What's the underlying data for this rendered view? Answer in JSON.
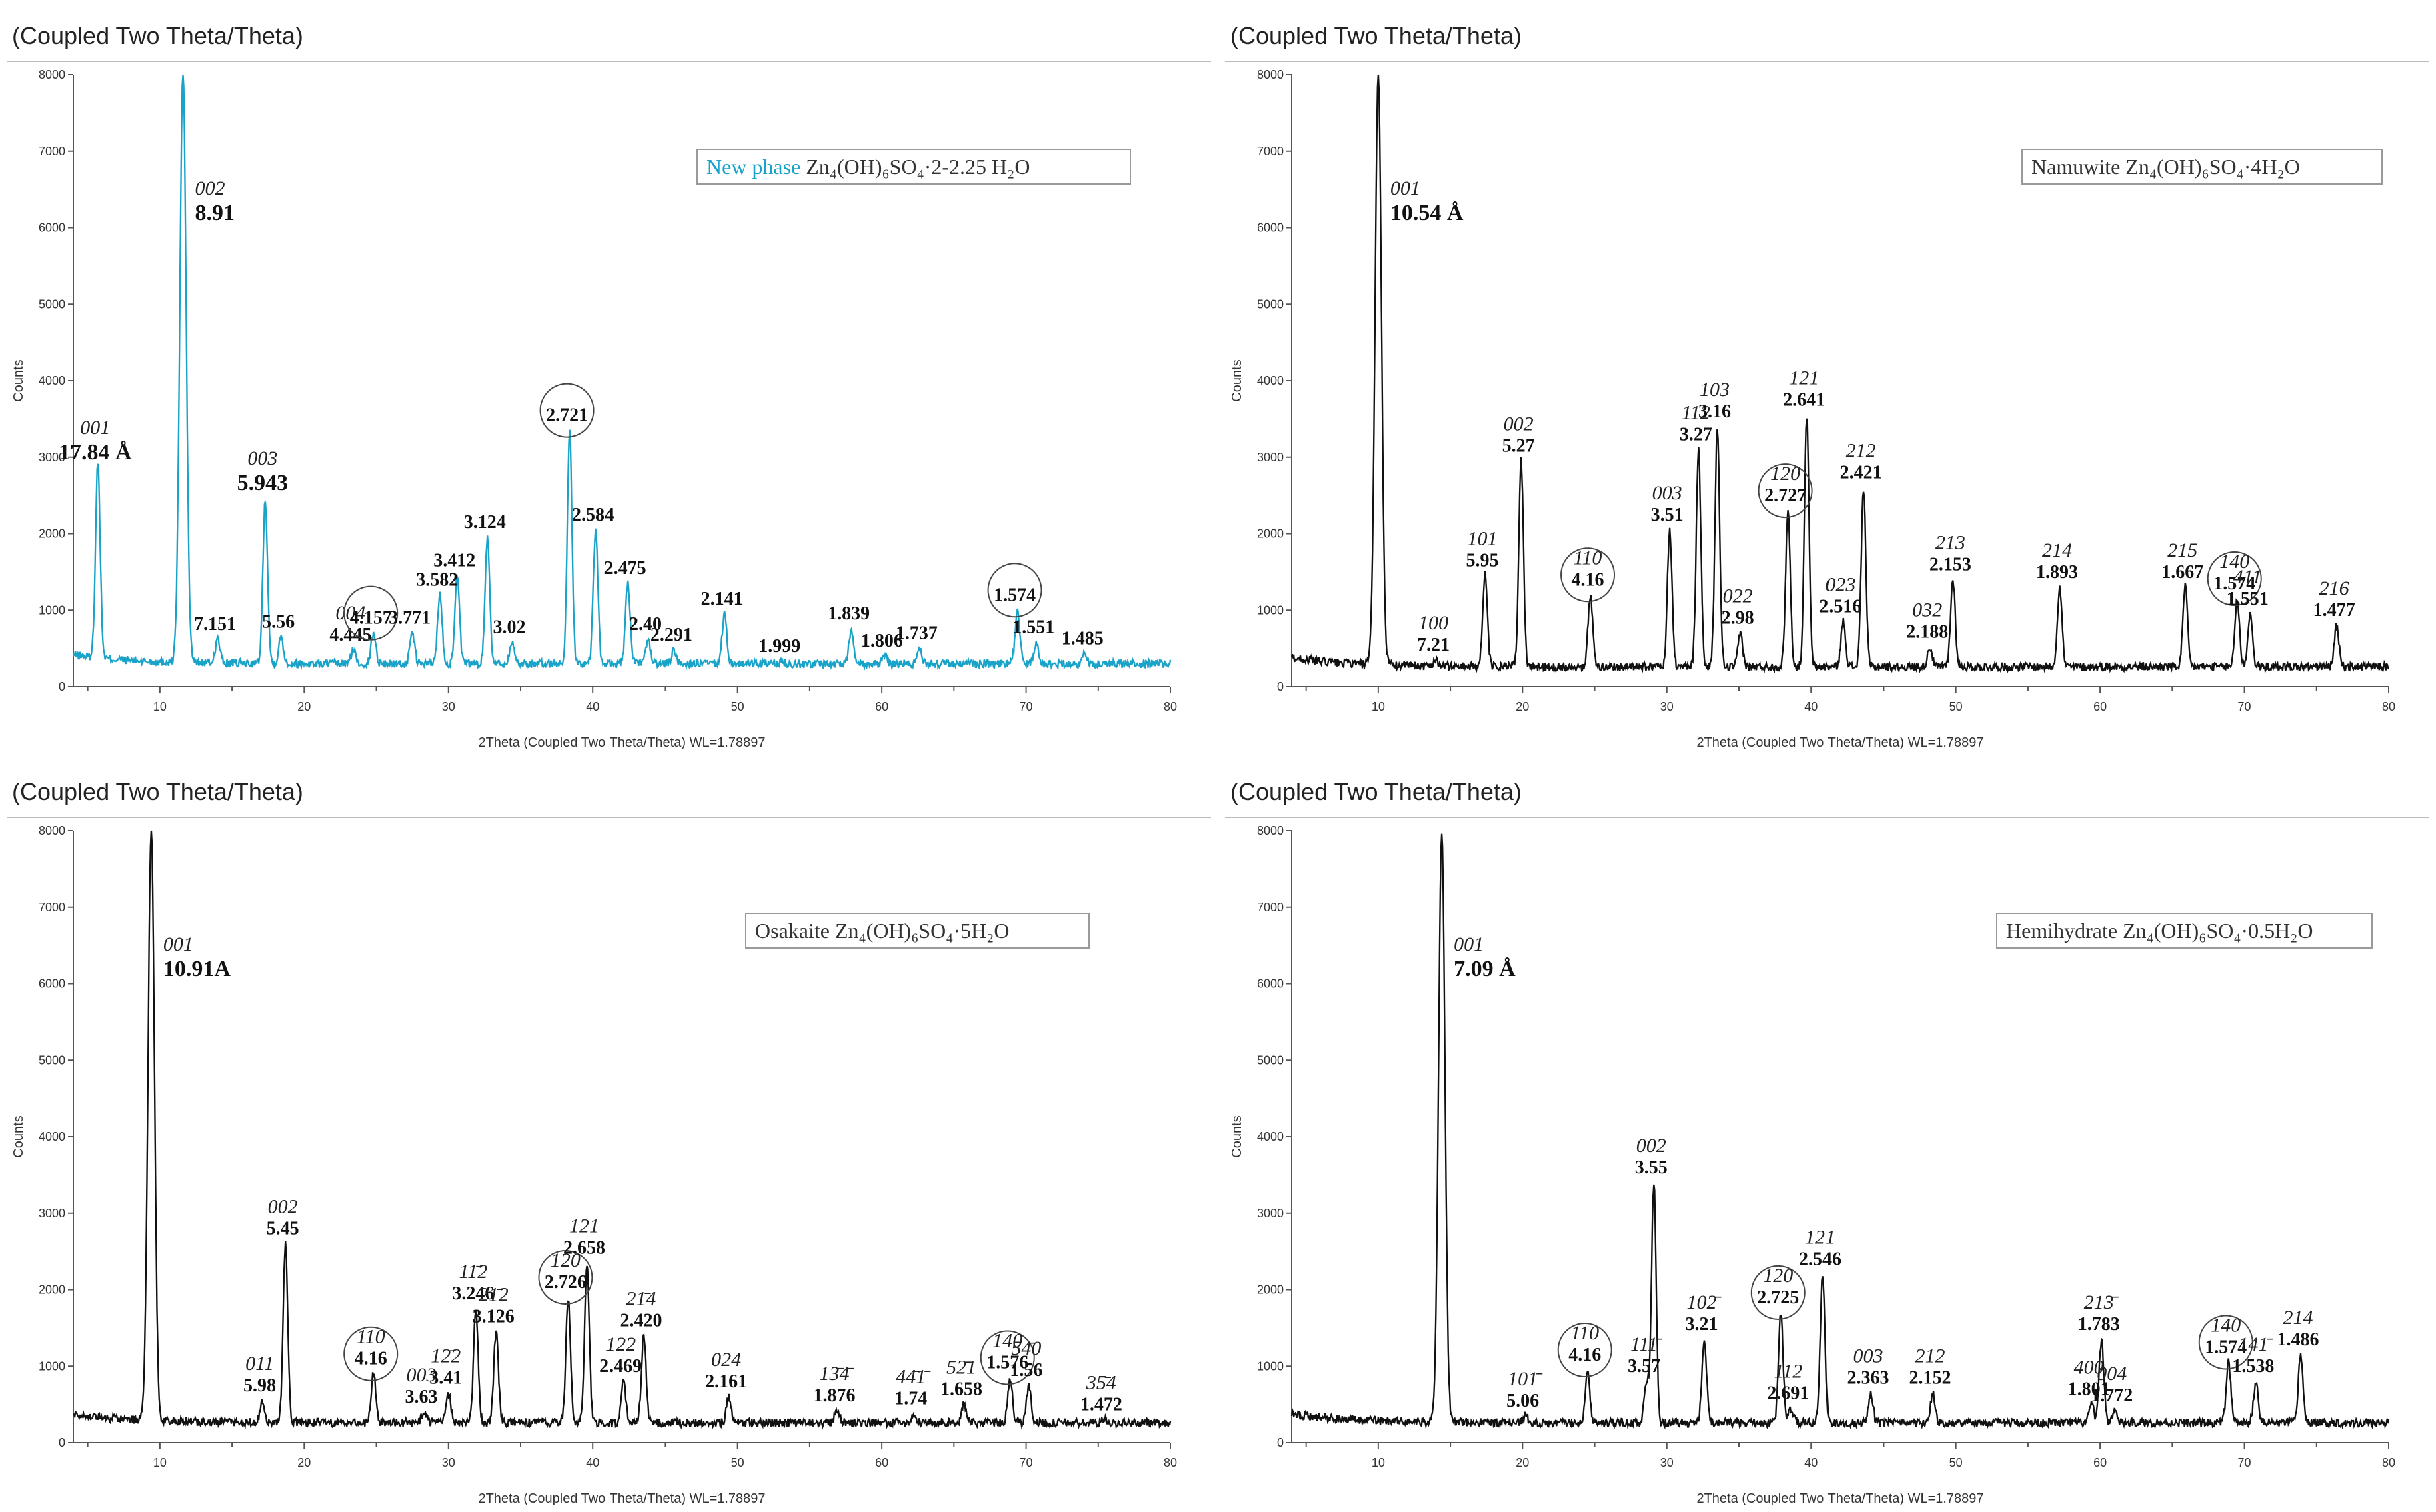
{
  "figure": {
    "panel_title": "(Coupled Two Theta/Theta)",
    "xlabel": "2Theta (Coupled Two Theta/Theta) WL=1.78897",
    "ylabel": "Counts"
  },
  "chart_data": [
    {
      "id": "new-phase",
      "type": "line",
      "color": "#1aa3c8",
      "title": "(Coupled Two Theta/Theta)",
      "xlabel": "2Theta (Coupled Two Theta/Theta) WL=1.78897",
      "ylabel": "Counts",
      "xlim": [
        4,
        80
      ],
      "ylim": [
        0,
        8000
      ],
      "xticks": [
        10,
        20,
        30,
        40,
        50,
        60,
        70,
        80
      ],
      "yticks": [
        0,
        1000,
        2000,
        3000,
        4000,
        5000,
        6000,
        7000,
        8000
      ],
      "legend": {
        "name": "New phase",
        "formula": "Zn₄(OH)₆SO₄·2-2.25 H₂O"
      },
      "baseline": 300,
      "peaks": [
        {
          "x": 5.7,
          "y": 2850,
          "hkl": "001",
          "d": "17.84 Å",
          "big": true
        },
        {
          "x": 11.6,
          "y": 8000,
          "hkl": "002",
          "d": "8.91",
          "big": true
        },
        {
          "x": 14.0,
          "y": 620,
          "d": "7.151"
        },
        {
          "x": 17.3,
          "y": 2450,
          "hkl": "003",
          "d": "5.943",
          "big": true
        },
        {
          "x": 18.4,
          "y": 650,
          "d": "5.56"
        },
        {
          "x": 23.4,
          "y": 480,
          "hkl": "004",
          "d": "4.445"
        },
        {
          "x": 24.8,
          "y": 700,
          "d": "4.157",
          "circled": true
        },
        {
          "x": 27.5,
          "y": 700,
          "d": "3.771"
        },
        {
          "x": 29.4,
          "y": 1200,
          "d": "3.582"
        },
        {
          "x": 30.6,
          "y": 1450,
          "d": "3.412"
        },
        {
          "x": 32.7,
          "y": 1950,
          "d": "3.124"
        },
        {
          "x": 34.4,
          "y": 580,
          "d": "3.02"
        },
        {
          "x": 38.4,
          "y": 3350,
          "d": "2.721",
          "circled": true
        },
        {
          "x": 40.2,
          "y": 2050,
          "d": "2.584"
        },
        {
          "x": 42.4,
          "y": 1350,
          "d": "2.475"
        },
        {
          "x": 43.8,
          "y": 620,
          "d": "2.40"
        },
        {
          "x": 45.6,
          "y": 480,
          "d": "2.291"
        },
        {
          "x": 49.1,
          "y": 950,
          "d": "2.141"
        },
        {
          "x": 53.1,
          "y": 330,
          "d": "1.999"
        },
        {
          "x": 57.9,
          "y": 760,
          "d": "1.839"
        },
        {
          "x": 60.2,
          "y": 400,
          "d": "1.806"
        },
        {
          "x": 62.6,
          "y": 500,
          "d": "1.737"
        },
        {
          "x": 69.4,
          "y": 1000,
          "d": "1.574",
          "circled": true
        },
        {
          "x": 70.7,
          "y": 580,
          "d": "1.551"
        },
        {
          "x": 74.1,
          "y": 430,
          "d": "1.485"
        }
      ]
    },
    {
      "id": "namuwite",
      "type": "line",
      "color": "#111111",
      "title": "(Coupled Two Theta/Theta)",
      "xlabel": "2Theta (Coupled Two Theta/Theta) WL=1.78897",
      "ylabel": "Counts",
      "xlim": [
        4,
        80
      ],
      "ylim": [
        0,
        8000
      ],
      "xticks": [
        10,
        20,
        30,
        40,
        50,
        60,
        70,
        80
      ],
      "yticks": [
        0,
        1000,
        2000,
        3000,
        4000,
        5000,
        6000,
        7000,
        8000
      ],
      "legend": {
        "name": "Namuwite",
        "formula": "Zn₄(OH)₆SO₄·4H₂O"
      },
      "baseline": 260,
      "peaks": [
        {
          "x": 10.0,
          "y": 8000,
          "hkl": "001",
          "d": "10.54 Å",
          "big": true
        },
        {
          "x": 14.0,
          "y": 350,
          "hkl": "100",
          "d": "7.21"
        },
        {
          "x": 17.4,
          "y": 1450,
          "hkl": "101",
          "d": "5.95"
        },
        {
          "x": 19.9,
          "y": 2950,
          "hkl": "002",
          "d": "5.27"
        },
        {
          "x": 24.7,
          "y": 1200,
          "hkl": "110",
          "d": "4.16",
          "circled": true
        },
        {
          "x": 30.2,
          "y": 2050,
          "hkl": "003",
          "d": "3.51"
        },
        {
          "x": 32.2,
          "y": 3100,
          "hkl": "112",
          "d": "3.27"
        },
        {
          "x": 33.5,
          "y": 3400,
          "hkl": "103",
          "d": "3.16"
        },
        {
          "x": 35.1,
          "y": 700,
          "hkl": "022",
          "d": "2.98"
        },
        {
          "x": 38.4,
          "y": 2300,
          "hkl": "120",
          "d": "2.727",
          "circled": true
        },
        {
          "x": 39.7,
          "y": 3550,
          "hkl": "121",
          "d": "2.641"
        },
        {
          "x": 42.2,
          "y": 850,
          "hkl": "023",
          "d": "2.516"
        },
        {
          "x": 43.6,
          "y": 2600,
          "hkl": "212",
          "d": "2.421"
        },
        {
          "x": 48.2,
          "y": 520,
          "hkl": "032",
          "d": "2.188"
        },
        {
          "x": 49.8,
          "y": 1400,
          "hkl": "213",
          "d": "2.153"
        },
        {
          "x": 57.2,
          "y": 1300,
          "hkl": "214",
          "d": "1.893"
        },
        {
          "x": 65.9,
          "y": 1300,
          "hkl": "215",
          "d": "1.667"
        },
        {
          "x": 69.5,
          "y": 1150,
          "hkl": "140",
          "d": "1.574",
          "circled": true
        },
        {
          "x": 70.4,
          "y": 950,
          "hkl": "411",
          "d": "1.551"
        },
        {
          "x": 76.4,
          "y": 800,
          "hkl": "216",
          "d": "1.477"
        }
      ]
    },
    {
      "id": "osakaite",
      "type": "line",
      "color": "#111111",
      "title": "(Coupled Two Theta/Theta)",
      "xlabel": "2Theta (Coupled Two Theta/Theta) WL=1.78897",
      "ylabel": "Counts",
      "xlim": [
        4,
        80
      ],
      "ylim": [
        0,
        8000
      ],
      "xticks": [
        10,
        20,
        30,
        40,
        50,
        60,
        70,
        80
      ],
      "yticks": [
        0,
        1000,
        2000,
        3000,
        4000,
        5000,
        6000,
        7000,
        8000
      ],
      "legend": {
        "name": "Osakaite",
        "formula": "Zn₄(OH)₆SO₄·5H₂O"
      },
      "baseline": 260,
      "peaks": [
        {
          "x": 9.4,
          "y": 8000,
          "hkl": "001",
          "d": "10.91A",
          "big": true
        },
        {
          "x": 17.1,
          "y": 550,
          "hkl": "011",
          "d": "5.98"
        },
        {
          "x": 18.7,
          "y": 2600,
          "hkl": "002",
          "d": "5.45"
        },
        {
          "x": 24.8,
          "y": 900,
          "hkl": "110",
          "d": "4.16",
          "circled": true
        },
        {
          "x": 28.3,
          "y": 400,
          "hkl": "003",
          "d": "3.63"
        },
        {
          "x": 30.0,
          "y": 650,
          "hkl": "12̄2",
          "d": "3.41"
        },
        {
          "x": 31.9,
          "y": 1750,
          "hkl": "11̄2",
          "d": "3.246"
        },
        {
          "x": 33.3,
          "y": 1450,
          "hkl": "21̄2",
          "d": "3.126"
        },
        {
          "x": 38.3,
          "y": 1900,
          "hkl": "120",
          "d": "2.726",
          "circled": true
        },
        {
          "x": 39.6,
          "y": 2350,
          "hkl": "121",
          "d": "2.658"
        },
        {
          "x": 42.1,
          "y": 800,
          "hkl": "122",
          "d": "2.469"
        },
        {
          "x": 43.5,
          "y": 1400,
          "hkl": "21̄4",
          "d": "2.420"
        },
        {
          "x": 49.4,
          "y": 600,
          "hkl": "024",
          "d": "2.161"
        },
        {
          "x": 56.9,
          "y": 420,
          "hkl": "13̄4̄",
          "d": "1.876"
        },
        {
          "x": 62.2,
          "y": 380,
          "hkl": "44̄1̄",
          "d": "1.74"
        },
        {
          "x": 65.7,
          "y": 500,
          "hkl": "52̄1",
          "d": "1.658"
        },
        {
          "x": 68.9,
          "y": 850,
          "hkl": "140",
          "d": "1.576",
          "circled": true
        },
        {
          "x": 70.2,
          "y": 750,
          "hkl": "54̄0",
          "d": "1.56"
        },
        {
          "x": 75.4,
          "y": 300,
          "hkl": "35̄4",
          "d": "1.472"
        }
      ]
    },
    {
      "id": "hemihydrate",
      "type": "line",
      "color": "#111111",
      "title": "(Coupled Two Theta/Theta)",
      "xlabel": "2Theta (Coupled Two Theta/Theta) WL=1.78897",
      "ylabel": "Counts",
      "xlim": [
        4,
        80
      ],
      "ylim": [
        0,
        8000
      ],
      "xticks": [
        10,
        20,
        30,
        40,
        50,
        60,
        70,
        80
      ],
      "yticks": [
        0,
        1000,
        2000,
        3000,
        4000,
        5000,
        6000,
        7000,
        8000
      ],
      "legend": {
        "name": "Hemihydrate",
        "formula": "Zn₄(OH)₆SO₄·0.5H₂O"
      },
      "baseline": 260,
      "peaks": [
        {
          "x": 14.4,
          "y": 8000,
          "hkl": "001",
          "d": "7.09 Å",
          "big": true
        },
        {
          "x": 20.2,
          "y": 350,
          "hkl": "101̄",
          "d": "5.06"
        },
        {
          "x": 24.5,
          "y": 950,
          "hkl": "110",
          "d": "4.16",
          "circled": true
        },
        {
          "x": 28.6,
          "y": 800,
          "hkl": "111̄",
          "d": "3.57"
        },
        {
          "x": 29.1,
          "y": 3400,
          "hkl": "002",
          "d": "3.55"
        },
        {
          "x": 32.6,
          "y": 1350,
          "hkl": "102̄",
          "d": "3.21"
        },
        {
          "x": 37.9,
          "y": 1700,
          "hkl": "120",
          "d": "2.725",
          "circled": true
        },
        {
          "x": 38.6,
          "y": 450,
          "hkl": "112",
          "d": "2.691"
        },
        {
          "x": 40.8,
          "y": 2200,
          "hkl": "121",
          "d": "2.546"
        },
        {
          "x": 44.1,
          "y": 650,
          "hkl": "003",
          "d": "2.363"
        },
        {
          "x": 48.4,
          "y": 650,
          "hkl": "212",
          "d": "2.152"
        },
        {
          "x": 59.4,
          "y": 500,
          "hkl": "400",
          "d": "1.801"
        },
        {
          "x": 60.1,
          "y": 1350,
          "hkl": "213̄",
          "d": "1.783"
        },
        {
          "x": 61.0,
          "y": 420,
          "hkl": "004",
          "d": "1.772"
        },
        {
          "x": 68.9,
          "y": 1050,
          "hkl": "140",
          "d": "1.574",
          "circled": true
        },
        {
          "x": 70.8,
          "y": 800,
          "hkl": "141̄",
          "d": "1.538"
        },
        {
          "x": 73.9,
          "y": 1150,
          "hkl": "214",
          "d": "1.486"
        }
      ]
    }
  ]
}
